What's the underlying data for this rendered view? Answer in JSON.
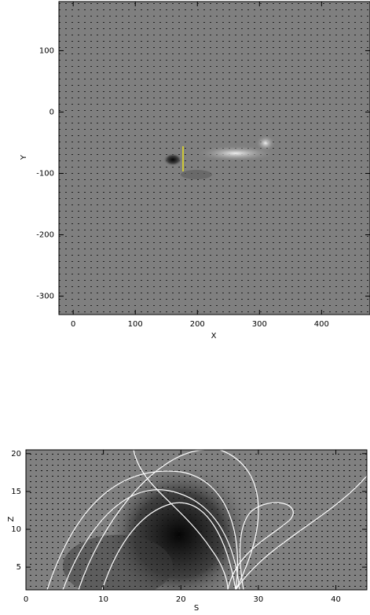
{
  "chart_data": [
    {
      "type": "image",
      "xlabel": "X",
      "ylabel": "Y",
      "xlim": [
        -23,
        478
      ],
      "ylim": [
        -330,
        180
      ],
      "xticks": [
        0,
        100,
        200,
        300,
        400
      ],
      "yticks": [
        -300,
        -200,
        -100,
        0,
        100
      ]
    },
    {
      "type": "image",
      "xlabel": "S",
      "ylabel": "Z",
      "xlim": [
        0,
        44
      ],
      "ylim": [
        2,
        20.5
      ],
      "xticks": [
        0,
        10,
        20,
        30,
        40
      ],
      "yticks": [
        5,
        10,
        15,
        20
      ]
    }
  ]
}
